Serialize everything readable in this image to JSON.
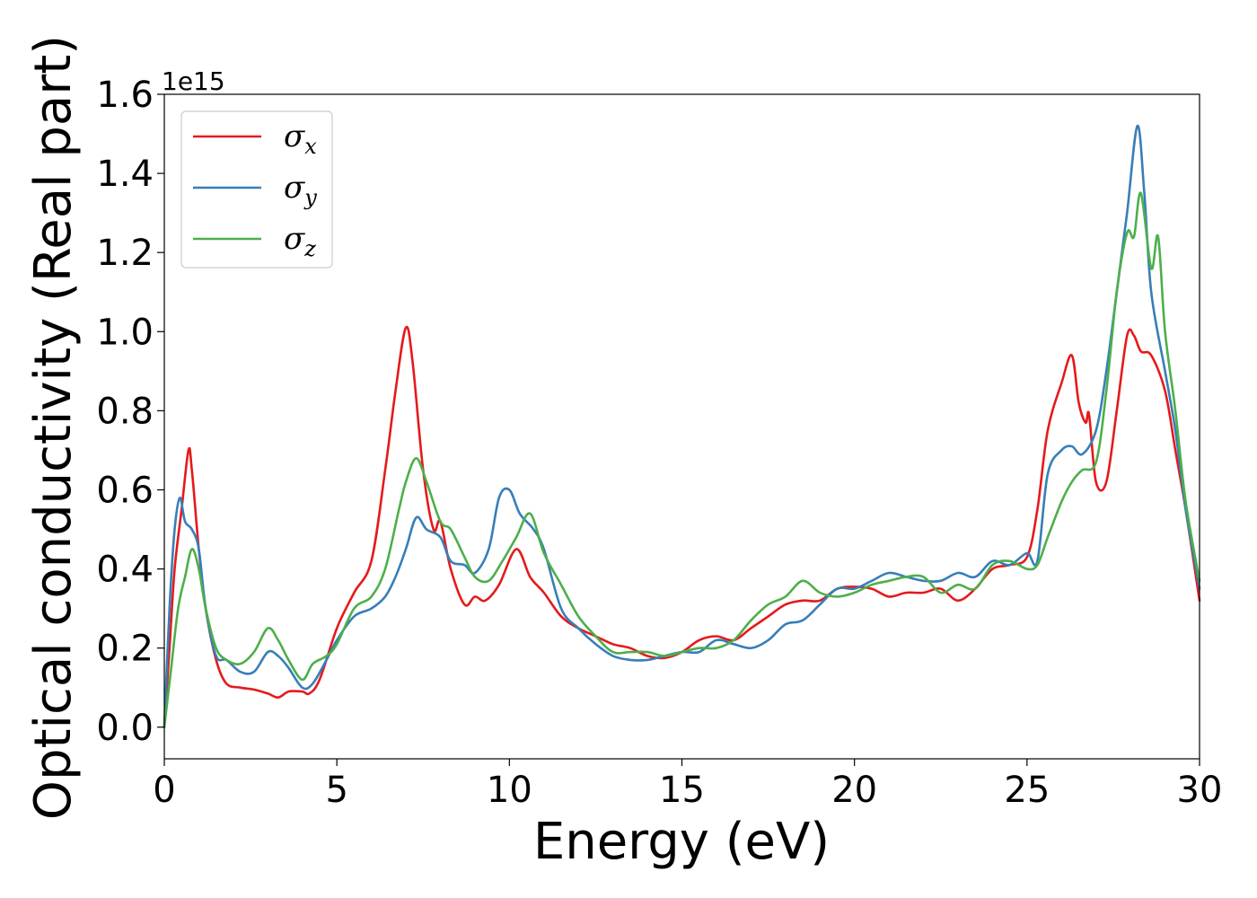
{
  "chart_data": {
    "type": "line",
    "xlabel": "Energy (eV)",
    "ylabel": "Optical conductivity (Real part)",
    "y_offset_label": "1e15",
    "xlim": [
      0,
      30
    ],
    "ylim": [
      -0.08,
      1.6
    ],
    "x_ticks": [
      "0",
      "5",
      "10",
      "15",
      "20",
      "25",
      "30"
    ],
    "x_tick_values": [
      0,
      5,
      10,
      15,
      20,
      25,
      30
    ],
    "y_ticks": [
      "0.0",
      "0.2",
      "0.4",
      "0.6",
      "0.8",
      "1.0",
      "1.2",
      "1.4",
      "1.6"
    ],
    "y_tick_values": [
      0.0,
      0.2,
      0.4,
      0.6,
      0.8,
      1.0,
      1.2,
      1.4,
      1.6
    ],
    "grid": false,
    "legend_position": "top-left",
    "series": [
      {
        "name": "σx",
        "symbol": "σ",
        "subscript": "x",
        "color": "#e41a1c",
        "points": [
          [
            0,
            0
          ],
          [
            0.15,
            0.2
          ],
          [
            0.3,
            0.4
          ],
          [
            0.5,
            0.55
          ],
          [
            0.7,
            0.7
          ],
          [
            0.8,
            0.65
          ],
          [
            1.0,
            0.45
          ],
          [
            1.2,
            0.3
          ],
          [
            1.5,
            0.17
          ],
          [
            1.8,
            0.11
          ],
          [
            2.2,
            0.1
          ],
          [
            2.6,
            0.095
          ],
          [
            3.0,
            0.085
          ],
          [
            3.3,
            0.075
          ],
          [
            3.6,
            0.09
          ],
          [
            4.0,
            0.09
          ],
          [
            4.2,
            0.085
          ],
          [
            4.5,
            0.12
          ],
          [
            5.0,
            0.25
          ],
          [
            5.5,
            0.34
          ],
          [
            6.0,
            0.42
          ],
          [
            6.4,
            0.65
          ],
          [
            6.7,
            0.85
          ],
          [
            7.0,
            1.01
          ],
          [
            7.2,
            0.92
          ],
          [
            7.5,
            0.65
          ],
          [
            7.8,
            0.5
          ],
          [
            8.0,
            0.52
          ],
          [
            8.3,
            0.4
          ],
          [
            8.7,
            0.31
          ],
          [
            9.0,
            0.33
          ],
          [
            9.3,
            0.32
          ],
          [
            9.7,
            0.36
          ],
          [
            10.2,
            0.45
          ],
          [
            10.6,
            0.38
          ],
          [
            11.0,
            0.34
          ],
          [
            11.5,
            0.28
          ],
          [
            12.0,
            0.25
          ],
          [
            12.5,
            0.23
          ],
          [
            13.0,
            0.21
          ],
          [
            13.5,
            0.2
          ],
          [
            14.0,
            0.18
          ],
          [
            14.5,
            0.175
          ],
          [
            15.0,
            0.19
          ],
          [
            15.5,
            0.22
          ],
          [
            16.0,
            0.23
          ],
          [
            16.5,
            0.22
          ],
          [
            17.0,
            0.25
          ],
          [
            17.5,
            0.28
          ],
          [
            18.0,
            0.31
          ],
          [
            18.5,
            0.32
          ],
          [
            19.0,
            0.32
          ],
          [
            19.5,
            0.35
          ],
          [
            20.0,
            0.355
          ],
          [
            20.5,
            0.35
          ],
          [
            21.0,
            0.33
          ],
          [
            21.5,
            0.34
          ],
          [
            22.0,
            0.34
          ],
          [
            22.5,
            0.35
          ],
          [
            23.0,
            0.32
          ],
          [
            23.5,
            0.35
          ],
          [
            24.0,
            0.4
          ],
          [
            24.5,
            0.41
          ],
          [
            25.0,
            0.43
          ],
          [
            25.3,
            0.55
          ],
          [
            25.6,
            0.75
          ],
          [
            26.0,
            0.87
          ],
          [
            26.3,
            0.94
          ],
          [
            26.5,
            0.82
          ],
          [
            26.7,
            0.77
          ],
          [
            26.8,
            0.79
          ],
          [
            27.0,
            0.62
          ],
          [
            27.3,
            0.62
          ],
          [
            27.6,
            0.8
          ],
          [
            27.9,
            0.99
          ],
          [
            28.1,
            0.99
          ],
          [
            28.3,
            0.95
          ],
          [
            28.6,
            0.94
          ],
          [
            29.0,
            0.85
          ],
          [
            29.3,
            0.7
          ],
          [
            29.6,
            0.55
          ],
          [
            30.0,
            0.32
          ]
        ]
      },
      {
        "name": "σy",
        "symbol": "σ",
        "subscript": "y",
        "color": "#377eb8",
        "points": [
          [
            0,
            0
          ],
          [
            0.15,
            0.3
          ],
          [
            0.3,
            0.5
          ],
          [
            0.45,
            0.58
          ],
          [
            0.6,
            0.52
          ],
          [
            0.8,
            0.5
          ],
          [
            1.0,
            0.45
          ],
          [
            1.2,
            0.3
          ],
          [
            1.5,
            0.18
          ],
          [
            1.8,
            0.17
          ],
          [
            2.2,
            0.14
          ],
          [
            2.6,
            0.14
          ],
          [
            3.0,
            0.19
          ],
          [
            3.3,
            0.18
          ],
          [
            3.6,
            0.15
          ],
          [
            4.0,
            0.1
          ],
          [
            4.3,
            0.11
          ],
          [
            4.7,
            0.17
          ],
          [
            5.0,
            0.22
          ],
          [
            5.5,
            0.28
          ],
          [
            6.0,
            0.3
          ],
          [
            6.4,
            0.33
          ],
          [
            6.7,
            0.38
          ],
          [
            7.0,
            0.45
          ],
          [
            7.3,
            0.53
          ],
          [
            7.6,
            0.5
          ],
          [
            8.0,
            0.48
          ],
          [
            8.3,
            0.42
          ],
          [
            8.7,
            0.41
          ],
          [
            9.0,
            0.39
          ],
          [
            9.4,
            0.45
          ],
          [
            9.7,
            0.58
          ],
          [
            10.0,
            0.6
          ],
          [
            10.3,
            0.54
          ],
          [
            10.7,
            0.5
          ],
          [
            11.0,
            0.45
          ],
          [
            11.5,
            0.3
          ],
          [
            12.0,
            0.25
          ],
          [
            12.5,
            0.21
          ],
          [
            13.0,
            0.18
          ],
          [
            13.5,
            0.17
          ],
          [
            14.0,
            0.17
          ],
          [
            14.5,
            0.18
          ],
          [
            15.0,
            0.19
          ],
          [
            15.5,
            0.19
          ],
          [
            16.0,
            0.22
          ],
          [
            16.5,
            0.21
          ],
          [
            17.0,
            0.2
          ],
          [
            17.5,
            0.22
          ],
          [
            18.0,
            0.26
          ],
          [
            18.5,
            0.27
          ],
          [
            19.0,
            0.31
          ],
          [
            19.5,
            0.35
          ],
          [
            20.0,
            0.35
          ],
          [
            20.5,
            0.37
          ],
          [
            21.0,
            0.39
          ],
          [
            21.5,
            0.38
          ],
          [
            22.0,
            0.37
          ],
          [
            22.5,
            0.37
          ],
          [
            23.0,
            0.39
          ],
          [
            23.5,
            0.38
          ],
          [
            24.0,
            0.42
          ],
          [
            24.5,
            0.41
          ],
          [
            25.0,
            0.44
          ],
          [
            25.3,
            0.42
          ],
          [
            25.6,
            0.64
          ],
          [
            26.0,
            0.7
          ],
          [
            26.3,
            0.71
          ],
          [
            26.6,
            0.69
          ],
          [
            27.0,
            0.75
          ],
          [
            27.3,
            0.9
          ],
          [
            27.6,
            1.1
          ],
          [
            27.9,
            1.3
          ],
          [
            28.2,
            1.52
          ],
          [
            28.4,
            1.35
          ],
          [
            28.6,
            1.1
          ],
          [
            29.0,
            0.9
          ],
          [
            29.3,
            0.75
          ],
          [
            29.6,
            0.55
          ],
          [
            30.0,
            0.35
          ]
        ]
      },
      {
        "name": "σz",
        "symbol": "σ",
        "subscript": "z",
        "color": "#4daf4a",
        "points": [
          [
            0,
            0
          ],
          [
            0.2,
            0.15
          ],
          [
            0.4,
            0.3
          ],
          [
            0.6,
            0.38
          ],
          [
            0.8,
            0.45
          ],
          [
            1.0,
            0.4
          ],
          [
            1.2,
            0.3
          ],
          [
            1.5,
            0.2
          ],
          [
            1.8,
            0.17
          ],
          [
            2.2,
            0.16
          ],
          [
            2.6,
            0.19
          ],
          [
            3.0,
            0.25
          ],
          [
            3.3,
            0.22
          ],
          [
            3.6,
            0.17
          ],
          [
            4.0,
            0.12
          ],
          [
            4.3,
            0.16
          ],
          [
            4.7,
            0.18
          ],
          [
            5.0,
            0.21
          ],
          [
            5.5,
            0.3
          ],
          [
            6.0,
            0.33
          ],
          [
            6.4,
            0.4
          ],
          [
            6.8,
            0.55
          ],
          [
            7.0,
            0.62
          ],
          [
            7.3,
            0.68
          ],
          [
            7.6,
            0.62
          ],
          [
            8.0,
            0.52
          ],
          [
            8.3,
            0.5
          ],
          [
            8.7,
            0.43
          ],
          [
            9.0,
            0.38
          ],
          [
            9.4,
            0.37
          ],
          [
            9.8,
            0.42
          ],
          [
            10.2,
            0.48
          ],
          [
            10.6,
            0.54
          ],
          [
            11.0,
            0.44
          ],
          [
            11.5,
            0.36
          ],
          [
            12.0,
            0.28
          ],
          [
            12.5,
            0.23
          ],
          [
            13.0,
            0.19
          ],
          [
            13.5,
            0.19
          ],
          [
            14.0,
            0.19
          ],
          [
            14.5,
            0.18
          ],
          [
            15.0,
            0.19
          ],
          [
            15.5,
            0.2
          ],
          [
            16.0,
            0.2
          ],
          [
            16.5,
            0.22
          ],
          [
            17.0,
            0.27
          ],
          [
            17.5,
            0.31
          ],
          [
            18.0,
            0.33
          ],
          [
            18.5,
            0.37
          ],
          [
            19.0,
            0.34
          ],
          [
            19.5,
            0.33
          ],
          [
            20.0,
            0.34
          ],
          [
            20.5,
            0.36
          ],
          [
            21.0,
            0.37
          ],
          [
            21.5,
            0.38
          ],
          [
            22.0,
            0.38
          ],
          [
            22.5,
            0.34
          ],
          [
            23.0,
            0.36
          ],
          [
            23.5,
            0.35
          ],
          [
            24.0,
            0.41
          ],
          [
            24.5,
            0.42
          ],
          [
            25.0,
            0.4
          ],
          [
            25.3,
            0.41
          ],
          [
            25.6,
            0.48
          ],
          [
            26.0,
            0.57
          ],
          [
            26.3,
            0.62
          ],
          [
            26.6,
            0.65
          ],
          [
            27.0,
            0.67
          ],
          [
            27.3,
            0.85
          ],
          [
            27.6,
            1.1
          ],
          [
            27.9,
            1.25
          ],
          [
            28.1,
            1.24
          ],
          [
            28.3,
            1.35
          ],
          [
            28.6,
            1.16
          ],
          [
            28.8,
            1.24
          ],
          [
            29.0,
            1.0
          ],
          [
            29.3,
            0.8
          ],
          [
            29.6,
            0.57
          ],
          [
            30.0,
            0.37
          ]
        ]
      }
    ]
  }
}
